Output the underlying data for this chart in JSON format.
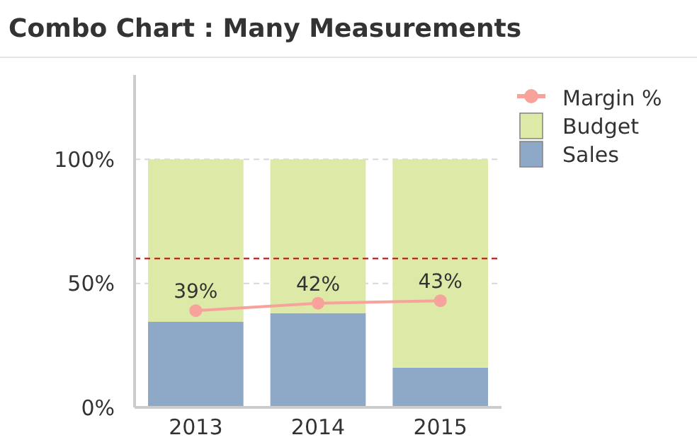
{
  "chart_data": {
    "type": "bar",
    "title": "Combo Chart : Many Measurements",
    "categories": [
      "2013",
      "2014",
      "2015"
    ],
    "stacked": true,
    "series": [
      {
        "name": "Sales",
        "color": "#8ea9c8",
        "values": [
          34.5,
          38,
          16
        ]
      },
      {
        "name": "Budget",
        "color": "#dde9a7",
        "values": [
          65.5,
          62,
          84
        ]
      },
      {
        "name": "Margin %",
        "type": "line",
        "color": "#f7a29a",
        "values": [
          39,
          42,
          43
        ],
        "marker": "circle",
        "value_labels": [
          "39%",
          "42%",
          "43%"
        ]
      }
    ],
    "ylim": [
      0,
      134
    ],
    "yticks": [
      {
        "value": 0,
        "label": "0%"
      },
      {
        "value": 50,
        "label": "50%"
      },
      {
        "value": 100,
        "label": "100%"
      }
    ],
    "grid": "y",
    "legend": "top right",
    "ref_lines": [
      {
        "axis": "y",
        "value": 60,
        "color": "#cc0000",
        "line_style": "dashed"
      }
    ]
  }
}
